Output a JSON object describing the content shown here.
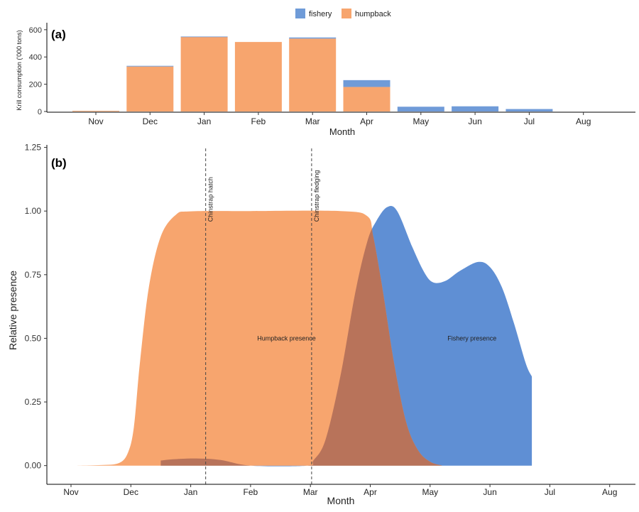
{
  "legend": {
    "items": [
      {
        "label": "fishery",
        "color": "#6f9bd8"
      },
      {
        "label": "humpback",
        "color": "#f7a56e"
      }
    ]
  },
  "chart_data": [
    {
      "panel_label": "(a)",
      "type": "bar",
      "stacked": true,
      "xlabel": "Month",
      "ylabel": "Krill consumption ('000 tons)",
      "categories": [
        "Nov",
        "Dec",
        "Jan",
        "Feb",
        "Mar",
        "Apr",
        "May",
        "Jun",
        "Jul",
        "Aug"
      ],
      "yticks": [
        0,
        200,
        400,
        600
      ],
      "ylim": [
        0,
        620
      ],
      "series": [
        {
          "name": "humpback",
          "color": "#f7a56e",
          "values": [
            5,
            330,
            548,
            510,
            535,
            180,
            0,
            0,
            0,
            0
          ]
        },
        {
          "name": "fishery",
          "color": "#6f9bd8",
          "values": [
            0,
            5,
            2,
            0,
            8,
            50,
            35,
            38,
            18,
            0
          ]
        }
      ],
      "grid": false,
      "legend_position": "top"
    },
    {
      "panel_label": "(b)",
      "type": "area",
      "xlabel": "Month",
      "ylabel": "Relative presence",
      "x_tick_labels": [
        "Nov",
        "Dec",
        "Jan",
        "Feb",
        "Mar",
        "Apr",
        "May",
        "Jun",
        "Jul",
        "Aug"
      ],
      "yticks": [
        0.0,
        0.25,
        0.5,
        0.75,
        1.0,
        1.25
      ],
      "ytick_labels": [
        "0.00",
        "0.25",
        "0.50",
        "0.75",
        "1.00",
        "1.25"
      ],
      "ylim": [
        -0.04,
        1.26
      ],
      "x_unit_note": "x in months from start of Nov",
      "series": [
        {
          "name": "Humpback presence",
          "color": "#f7a56e",
          "points": [
            [
              0.1,
              0
            ],
            [
              0.5,
              0.002
            ],
            [
              0.8,
              0.01
            ],
            [
              0.95,
              0.05
            ],
            [
              1.05,
              0.15
            ],
            [
              1.15,
              0.4
            ],
            [
              1.3,
              0.7
            ],
            [
              1.5,
              0.9
            ],
            [
              1.75,
              0.985
            ],
            [
              2.0,
              0.999
            ],
            [
              3.0,
              1.0
            ],
            [
              4.5,
              1.0
            ],
            [
              4.95,
              0.98
            ],
            [
              5.05,
              0.9
            ],
            [
              5.2,
              0.7
            ],
            [
              5.4,
              0.4
            ],
            [
              5.6,
              0.17
            ],
            [
              5.8,
              0.06
            ],
            [
              6.0,
              0.015
            ],
            [
              6.2,
              0
            ]
          ]
        },
        {
          "name": "Fishery presence",
          "color": "#5f8fd4",
          "points": [
            [
              1.5,
              0.02
            ],
            [
              1.7,
              0.025
            ],
            [
              2.1,
              0.028
            ],
            [
              2.5,
              0.022
            ],
            [
              3.0,
              0
            ],
            [
              3.95,
              0
            ],
            [
              4.05,
              0.02
            ],
            [
              4.25,
              0.1
            ],
            [
              4.5,
              0.35
            ],
            [
              4.75,
              0.68
            ],
            [
              4.95,
              0.88
            ],
            [
              5.1,
              0.96
            ],
            [
              5.28,
              1.015
            ],
            [
              5.45,
              1.0
            ],
            [
              5.7,
              0.86
            ],
            [
              5.9,
              0.76
            ],
            [
              6.05,
              0.72
            ],
            [
              6.25,
              0.725
            ],
            [
              6.5,
              0.765
            ],
            [
              6.8,
              0.8
            ],
            [
              7.0,
              0.78
            ],
            [
              7.2,
              0.7
            ],
            [
              7.4,
              0.56
            ],
            [
              7.6,
              0.4
            ],
            [
              7.7,
              0.35
            ]
          ]
        }
      ],
      "overlap_color": "#b8735a",
      "annotations": [
        {
          "text": "Humpback presence",
          "x": 3.6,
          "y": 0.5
        },
        {
          "text": "Fishery presence",
          "x": 6.7,
          "y": 0.5
        },
        {
          "text": "Chinstrap hatch",
          "x": 2.25,
          "y": 1.0
        },
        {
          "text": "Chinstrap fledging",
          "x": 4.02,
          "y": 1.0
        }
      ],
      "vlines": [
        {
          "label": "Chinstrap hatch",
          "x": 2.25
        },
        {
          "label": "Chinstrap fledging",
          "x": 4.02
        }
      ],
      "grid": false
    }
  ]
}
